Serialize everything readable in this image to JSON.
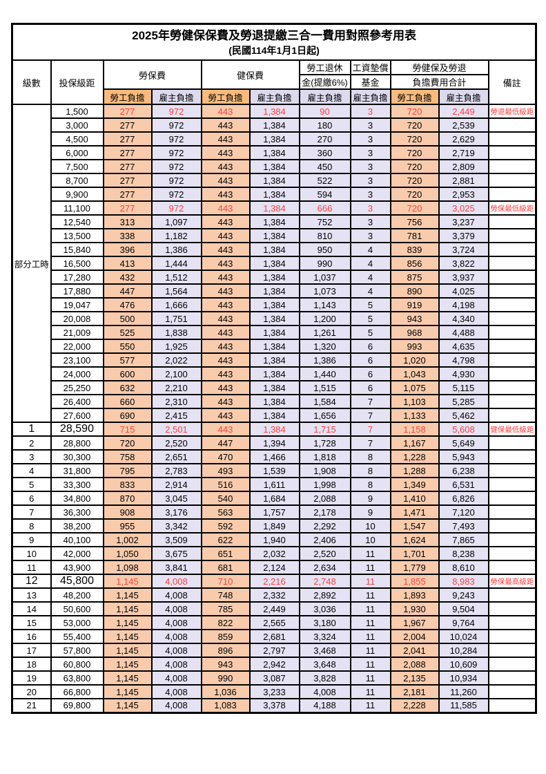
{
  "title": "2025年勞健保保費及勞退提繳三合一費用對照參考用表",
  "subtitle": "(民國114年1月1日起)",
  "header": {
    "level": "級數",
    "bracket": "投保級距",
    "labor_group": "勞保費",
    "health_group": "健保費",
    "pension_line1": "勞工退休",
    "pension_line2": "金(提繳6%)",
    "wage_fund_line1": "工資墊償",
    "wage_fund_line2": "基金",
    "total_line1": "勞健保及勞退",
    "total_line2": "負擔費用合計",
    "remark": "備註",
    "employee_label": "勞工負擔",
    "employer_label": "雇主負擔"
  },
  "part_time": {
    "label": "部分工時",
    "rows": 23
  },
  "colors": {
    "employee_bg": "#F8CBAD",
    "employer_bg": "#E4E2F3",
    "employee_header_bg": "#F8BB7D",
    "employer_header_bg": "#DDDAEE",
    "highlight_text": "#FF4040",
    "border": "#000000"
  },
  "rows": [
    {
      "level": "",
      "bracket": "1,500",
      "fees": [
        "277",
        "972",
        "443",
        "1,384",
        "90",
        "3",
        "720",
        "2,449"
      ],
      "remark": "勞退最低級距",
      "highlight": true,
      "big": false
    },
    {
      "level": "",
      "bracket": "3,000",
      "fees": [
        "277",
        "972",
        "443",
        "1,384",
        "180",
        "3",
        "720",
        "2,539"
      ],
      "remark": "",
      "highlight": false,
      "big": false
    },
    {
      "level": "",
      "bracket": "4,500",
      "fees": [
        "277",
        "972",
        "443",
        "1,384",
        "270",
        "3",
        "720",
        "2,629"
      ],
      "remark": "",
      "highlight": false,
      "big": false
    },
    {
      "level": "",
      "bracket": "6,000",
      "fees": [
        "277",
        "972",
        "443",
        "1,384",
        "360",
        "3",
        "720",
        "2,719"
      ],
      "remark": "",
      "highlight": false,
      "big": false
    },
    {
      "level": "",
      "bracket": "7,500",
      "fees": [
        "277",
        "972",
        "443",
        "1,384",
        "450",
        "3",
        "720",
        "2,809"
      ],
      "remark": "",
      "highlight": false,
      "big": false
    },
    {
      "level": "",
      "bracket": "8,700",
      "fees": [
        "277",
        "972",
        "443",
        "1,384",
        "522",
        "3",
        "720",
        "2,881"
      ],
      "remark": "",
      "highlight": false,
      "big": false
    },
    {
      "level": "",
      "bracket": "9,900",
      "fees": [
        "277",
        "972",
        "443",
        "1,384",
        "594",
        "3",
        "720",
        "2,953"
      ],
      "remark": "",
      "highlight": false,
      "big": false
    },
    {
      "level": "",
      "bracket": "11,100",
      "fees": [
        "277",
        "972",
        "443",
        "1,384",
        "666",
        "3",
        "720",
        "3,025"
      ],
      "remark": "勞保最低級距",
      "highlight": true,
      "big": false
    },
    {
      "level": "",
      "bracket": "12,540",
      "fees": [
        "313",
        "1,097",
        "443",
        "1,384",
        "752",
        "3",
        "756",
        "3,237"
      ],
      "remark": "",
      "highlight": false,
      "big": false
    },
    {
      "level": "",
      "bracket": "13,500",
      "fees": [
        "338",
        "1,182",
        "443",
        "1,384",
        "810",
        "3",
        "781",
        "3,379"
      ],
      "remark": "",
      "highlight": false,
      "big": false
    },
    {
      "level": "",
      "bracket": "15,840",
      "fees": [
        "396",
        "1,386",
        "443",
        "1,384",
        "950",
        "4",
        "839",
        "3,724"
      ],
      "remark": "",
      "highlight": false,
      "big": false
    },
    {
      "level": "",
      "bracket": "16,500",
      "fees": [
        "413",
        "1,444",
        "443",
        "1,384",
        "990",
        "4",
        "856",
        "3,822"
      ],
      "remark": "",
      "highlight": false,
      "big": false
    },
    {
      "level": "",
      "bracket": "17,280",
      "fees": [
        "432",
        "1,512",
        "443",
        "1,384",
        "1,037",
        "4",
        "875",
        "3,937"
      ],
      "remark": "",
      "highlight": false,
      "big": false
    },
    {
      "level": "",
      "bracket": "17,880",
      "fees": [
        "447",
        "1,564",
        "443",
        "1,384",
        "1,073",
        "4",
        "890",
        "4,025"
      ],
      "remark": "",
      "highlight": false,
      "big": false
    },
    {
      "level": "",
      "bracket": "19,047",
      "fees": [
        "476",
        "1,666",
        "443",
        "1,384",
        "1,143",
        "5",
        "919",
        "4,198"
      ],
      "remark": "",
      "highlight": false,
      "big": false
    },
    {
      "level": "",
      "bracket": "20,008",
      "fees": [
        "500",
        "1,751",
        "443",
        "1,384",
        "1,200",
        "5",
        "943",
        "4,340"
      ],
      "remark": "",
      "highlight": false,
      "big": false
    },
    {
      "level": "",
      "bracket": "21,009",
      "fees": [
        "525",
        "1,838",
        "443",
        "1,384",
        "1,261",
        "5",
        "968",
        "4,488"
      ],
      "remark": "",
      "highlight": false,
      "big": false
    },
    {
      "level": "",
      "bracket": "22,000",
      "fees": [
        "550",
        "1,925",
        "443",
        "1,384",
        "1,320",
        "6",
        "993",
        "4,635"
      ],
      "remark": "",
      "highlight": false,
      "big": false
    },
    {
      "level": "",
      "bracket": "23,100",
      "fees": [
        "577",
        "2,022",
        "443",
        "1,384",
        "1,386",
        "6",
        "1,020",
        "4,798"
      ],
      "remark": "",
      "highlight": false,
      "big": false
    },
    {
      "level": "",
      "bracket": "24,000",
      "fees": [
        "600",
        "2,100",
        "443",
        "1,384",
        "1,440",
        "6",
        "1,043",
        "4,930"
      ],
      "remark": "",
      "highlight": false,
      "big": false
    },
    {
      "level": "",
      "bracket": "25,250",
      "fees": [
        "632",
        "2,210",
        "443",
        "1,384",
        "1,515",
        "6",
        "1,075",
        "5,115"
      ],
      "remark": "",
      "highlight": false,
      "big": false
    },
    {
      "level": "",
      "bracket": "26,400",
      "fees": [
        "660",
        "2,310",
        "443",
        "1,384",
        "1,584",
        "7",
        "1,103",
        "5,285"
      ],
      "remark": "",
      "highlight": false,
      "big": false
    },
    {
      "level": "",
      "bracket": "27,600",
      "fees": [
        "690",
        "2,415",
        "443",
        "1,384",
        "1,656",
        "7",
        "1,133",
        "5,462"
      ],
      "remark": "",
      "highlight": false,
      "big": false
    },
    {
      "level": "1",
      "bracket": "28,590",
      "fees": [
        "715",
        "2,501",
        "443",
        "1,384",
        "1,715",
        "7",
        "1,158",
        "5,608"
      ],
      "remark": "健保最低級距",
      "highlight": true,
      "big": true
    },
    {
      "level": "2",
      "bracket": "28,800",
      "fees": [
        "720",
        "2,520",
        "447",
        "1,394",
        "1,728",
        "7",
        "1,167",
        "5,649"
      ],
      "remark": "",
      "highlight": false,
      "big": false
    },
    {
      "level": "3",
      "bracket": "30,300",
      "fees": [
        "758",
        "2,651",
        "470",
        "1,466",
        "1,818",
        "8",
        "1,228",
        "5,943"
      ],
      "remark": "",
      "highlight": false,
      "big": false
    },
    {
      "level": "4",
      "bracket": "31,800",
      "fees": [
        "795",
        "2,783",
        "493",
        "1,539",
        "1,908",
        "8",
        "1,288",
        "6,238"
      ],
      "remark": "",
      "highlight": false,
      "big": false
    },
    {
      "level": "5",
      "bracket": "33,300",
      "fees": [
        "833",
        "2,914",
        "516",
        "1,611",
        "1,998",
        "8",
        "1,349",
        "6,531"
      ],
      "remark": "",
      "highlight": false,
      "big": false
    },
    {
      "level": "6",
      "bracket": "34,800",
      "fees": [
        "870",
        "3,045",
        "540",
        "1,684",
        "2,088",
        "9",
        "1,410",
        "6,826"
      ],
      "remark": "",
      "highlight": false,
      "big": false
    },
    {
      "level": "7",
      "bracket": "36,300",
      "fees": [
        "908",
        "3,176",
        "563",
        "1,757",
        "2,178",
        "9",
        "1,471",
        "7,120"
      ],
      "remark": "",
      "highlight": false,
      "big": false
    },
    {
      "level": "8",
      "bracket": "38,200",
      "fees": [
        "955",
        "3,342",
        "592",
        "1,849",
        "2,292",
        "10",
        "1,547",
        "7,493"
      ],
      "remark": "",
      "highlight": false,
      "big": false
    },
    {
      "level": "9",
      "bracket": "40,100",
      "fees": [
        "1,002",
        "3,509",
        "622",
        "1,940",
        "2,406",
        "10",
        "1,624",
        "7,865"
      ],
      "remark": "",
      "highlight": false,
      "big": false
    },
    {
      "level": "10",
      "bracket": "42,000",
      "fees": [
        "1,050",
        "3,675",
        "651",
        "2,032",
        "2,520",
        "11",
        "1,701",
        "8,238"
      ],
      "remark": "",
      "highlight": false,
      "big": false
    },
    {
      "level": "11",
      "bracket": "43,900",
      "fees": [
        "1,098",
        "3,841",
        "681",
        "2,124",
        "2,634",
        "11",
        "1,779",
        "8,610"
      ],
      "remark": "",
      "highlight": false,
      "big": false
    },
    {
      "level": "12",
      "bracket": "45,800",
      "fees": [
        "1,145",
        "4,008",
        "710",
        "2,216",
        "2,748",
        "11",
        "1,855",
        "8,983"
      ],
      "remark": "勞保最高級距",
      "highlight": true,
      "big": true
    },
    {
      "level": "13",
      "bracket": "48,200",
      "fees": [
        "1,145",
        "4,008",
        "748",
        "2,332",
        "2,892",
        "11",
        "1,893",
        "9,243"
      ],
      "remark": "",
      "highlight": false,
      "big": false
    },
    {
      "level": "14",
      "bracket": "50,600",
      "fees": [
        "1,145",
        "4,008",
        "785",
        "2,449",
        "3,036",
        "11",
        "1,930",
        "9,504"
      ],
      "remark": "",
      "highlight": false,
      "big": false
    },
    {
      "level": "15",
      "bracket": "53,000",
      "fees": [
        "1,145",
        "4,008",
        "822",
        "2,565",
        "3,180",
        "11",
        "1,967",
        "9,764"
      ],
      "remark": "",
      "highlight": false,
      "big": false
    },
    {
      "level": "16",
      "bracket": "55,400",
      "fees": [
        "1,145",
        "4,008",
        "859",
        "2,681",
        "3,324",
        "11",
        "2,004",
        "10,024"
      ],
      "remark": "",
      "highlight": false,
      "big": false
    },
    {
      "level": "17",
      "bracket": "57,800",
      "fees": [
        "1,145",
        "4,008",
        "896",
        "2,797",
        "3,468",
        "11",
        "2,041",
        "10,284"
      ],
      "remark": "",
      "highlight": false,
      "big": false
    },
    {
      "level": "18",
      "bracket": "60,800",
      "fees": [
        "1,145",
        "4,008",
        "943",
        "2,942",
        "3,648",
        "11",
        "2,088",
        "10,609"
      ],
      "remark": "",
      "highlight": false,
      "big": false
    },
    {
      "level": "19",
      "bracket": "63,800",
      "fees": [
        "1,145",
        "4,008",
        "990",
        "3,087",
        "3,828",
        "11",
        "2,135",
        "10,934"
      ],
      "remark": "",
      "highlight": false,
      "big": false
    },
    {
      "level": "20",
      "bracket": "66,800",
      "fees": [
        "1,145",
        "4,008",
        "1,036",
        "3,233",
        "4,008",
        "11",
        "2,181",
        "11,260"
      ],
      "remark": "",
      "highlight": false,
      "big": false
    },
    {
      "level": "21",
      "bracket": "69,800",
      "fees": [
        "1,145",
        "4,008",
        "1,083",
        "3,378",
        "4,188",
        "11",
        "2,228",
        "11,585"
      ],
      "remark": "",
      "highlight": false,
      "big": false
    }
  ]
}
